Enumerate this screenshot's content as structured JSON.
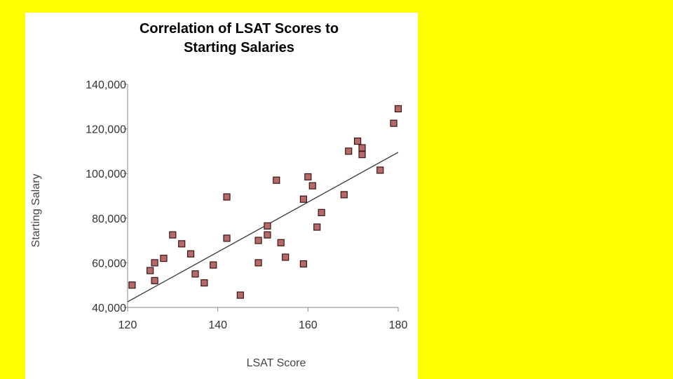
{
  "page": {
    "background": "#ffff00",
    "panel_background": "#ffffff"
  },
  "chart_data": {
    "type": "scatter",
    "title": [
      "Correlation of LSAT Scores to",
      "Starting Salaries"
    ],
    "xlabel": "LSAT Score",
    "ylabel": "Starting Salary",
    "xlim": [
      120,
      180
    ],
    "ylim": [
      40000,
      140000
    ],
    "x_ticks": [
      120,
      140,
      160,
      180
    ],
    "y_ticks": [
      40000,
      60000,
      80000,
      100000,
      120000,
      140000
    ],
    "x_tick_labels": [
      "120",
      "140",
      "160",
      "180"
    ],
    "y_tick_labels": [
      "40,000",
      "60,000",
      "80,000",
      "100,000",
      "120,000",
      "140,000"
    ],
    "grid": false,
    "legend": "none",
    "marker_color": "#b56a6a",
    "marker_edge_color": "#3a1515",
    "trend_line": {
      "x": [
        120,
        180
      ],
      "y": [
        42500,
        109500
      ],
      "color": "#444444"
    },
    "points": [
      {
        "x": 121,
        "y": 50000
      },
      {
        "x": 125,
        "y": 56500
      },
      {
        "x": 126,
        "y": 60000
      },
      {
        "x": 126,
        "y": 52000
      },
      {
        "x": 128,
        "y": 62000
      },
      {
        "x": 130,
        "y": 72500
      },
      {
        "x": 132,
        "y": 68500
      },
      {
        "x": 134,
        "y": 64000
      },
      {
        "x": 135,
        "y": 55000
      },
      {
        "x": 137,
        "y": 51000
      },
      {
        "x": 139,
        "y": 59000
      },
      {
        "x": 142,
        "y": 89500
      },
      {
        "x": 142,
        "y": 71000
      },
      {
        "x": 145,
        "y": 45500
      },
      {
        "x": 149,
        "y": 70000
      },
      {
        "x": 149,
        "y": 60000
      },
      {
        "x": 151,
        "y": 76500
      },
      {
        "x": 151,
        "y": 72500
      },
      {
        "x": 153,
        "y": 97000
      },
      {
        "x": 154,
        "y": 69000
      },
      {
        "x": 155,
        "y": 62500
      },
      {
        "x": 159,
        "y": 88500
      },
      {
        "x": 159,
        "y": 59500
      },
      {
        "x": 160,
        "y": 98500
      },
      {
        "x": 161,
        "y": 94500
      },
      {
        "x": 162,
        "y": 76000
      },
      {
        "x": 163,
        "y": 82500
      },
      {
        "x": 168,
        "y": 90500
      },
      {
        "x": 169,
        "y": 110000
      },
      {
        "x": 171,
        "y": 114500
      },
      {
        "x": 172,
        "y": 111500
      },
      {
        "x": 172,
        "y": 108500
      },
      {
        "x": 176,
        "y": 101500
      },
      {
        "x": 179,
        "y": 122500
      },
      {
        "x": 180,
        "y": 129000
      }
    ]
  }
}
